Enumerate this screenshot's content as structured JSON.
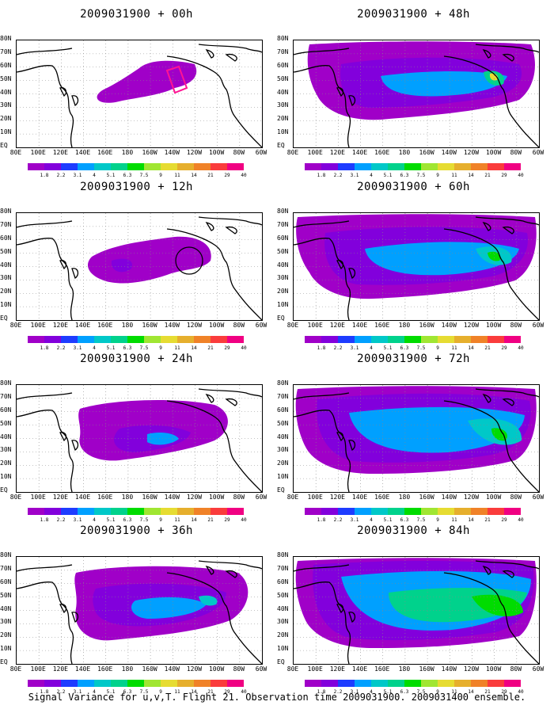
{
  "caption": "Signal Variance for u,v,T. Flight 21. Observation time 2009031900. 2009031400 ensemble.",
  "lat_labels": [
    "80N",
    "70N",
    "60N",
    "50N",
    "40N",
    "30N",
    "20N",
    "10N",
    "EQ"
  ],
  "lon_labels": [
    "80E",
    "100E",
    "120E",
    "140E",
    "160E",
    "180",
    "160W",
    "140W",
    "120W",
    "100W",
    "80W",
    "60W"
  ],
  "colorbar": {
    "labels": [
      "1.8",
      "2.2",
      "3.1",
      "4",
      "5.1",
      "6.3",
      "7.5",
      "9",
      "11",
      "14",
      "21",
      "29",
      "40"
    ],
    "colors": [
      "#a000c8",
      "#8200dc",
      "#1e3cff",
      "#00a0ff",
      "#00c8c8",
      "#00d28c",
      "#00dc00",
      "#a0e632",
      "#e6dc32",
      "#e6af2d",
      "#f08228",
      "#fa3c3c",
      "#f00082"
    ]
  },
  "panels": [
    {
      "title": "2009031900 + 00h",
      "lead": "00h"
    },
    {
      "title": "2009031900 + 48h",
      "lead": "48h"
    },
    {
      "title": "2009031900 + 12h",
      "lead": "12h"
    },
    {
      "title": "2009031900 + 60h",
      "lead": "60h"
    },
    {
      "title": "2009031900 + 24h",
      "lead": "24h"
    },
    {
      "title": "2009031900 + 72h",
      "lead": "72h"
    },
    {
      "title": "2009031900 + 36h",
      "lead": "36h"
    },
    {
      "title": "2009031900 + 84h",
      "lead": "84h"
    }
  ]
}
